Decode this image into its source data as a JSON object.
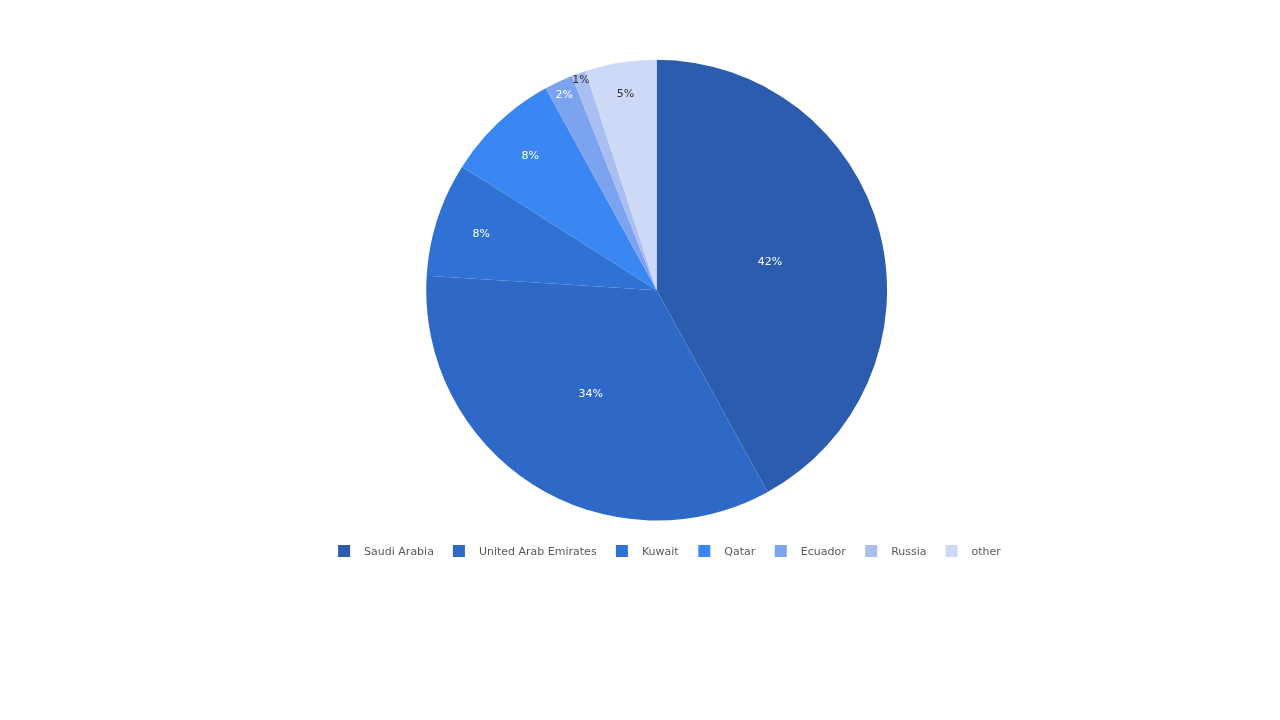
{
  "chart_data": {
    "type": "pie",
    "categories": [
      "Saudi Arabia",
      "United Arab Emirates",
      "Kuwait",
      "Qatar",
      "Ecuador",
      "Russia",
      "other"
    ],
    "values": [
      42,
      34,
      8,
      8,
      2,
      1,
      5
    ],
    "value_labels": [
      "42%",
      "34%",
      "8%",
      "8%",
      "2%",
      "1%",
      "5%"
    ],
    "colors": [
      "#2b5cad",
      "#2e69c8",
      "#2f72d4",
      "#3a86f2",
      "#7ba3f0",
      "#a9bff1",
      "#cdd9f7"
    ],
    "legend": "bottom"
  }
}
